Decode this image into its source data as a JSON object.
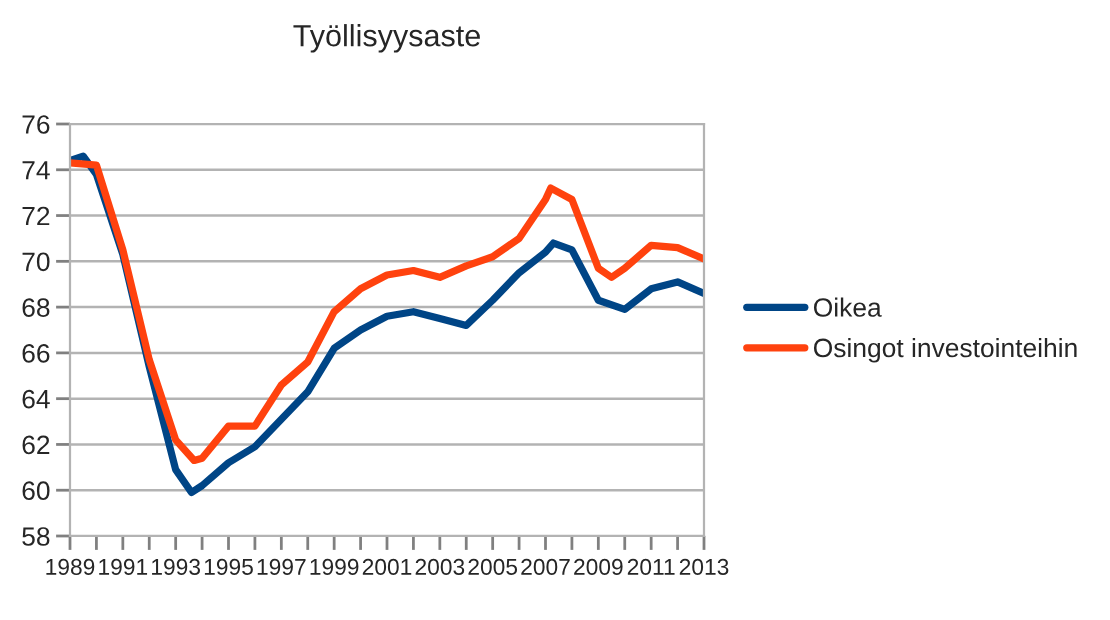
{
  "chart_data": {
    "type": "line",
    "title": "Työllisyysaste",
    "series": [
      {
        "name": "Oikea",
        "color": "#004586",
        "x": [
          1989,
          1989.5,
          1990,
          1991,
          1992,
          1993,
          1993.6,
          1994,
          1995,
          1996,
          1997,
          1998,
          1999,
          2000,
          2001,
          2002,
          2003,
          2004,
          2005,
          2006,
          2007,
          2007.3,
          2008,
          2009,
          2010,
          2011,
          2012,
          2013
        ],
        "values": [
          74.4,
          74.6,
          73.8,
          70.3,
          65.4,
          60.9,
          59.9,
          60.2,
          61.2,
          61.9,
          63.1,
          64.3,
          66.2,
          67.0,
          67.6,
          67.8,
          67.5,
          67.2,
          68.3,
          69.5,
          70.4,
          70.8,
          70.5,
          68.3,
          67.9,
          68.8,
          69.1,
          68.6
        ]
      },
      {
        "name": "Osingot investointeihin",
        "color": "#ff420e",
        "x": [
          1989,
          1990,
          1991,
          1992,
          1993,
          1993.7,
          1994,
          1995,
          1996,
          1997,
          1998,
          1999,
          2000,
          2001,
          2002,
          2003,
          2004,
          2005,
          2006,
          2007,
          2007.2,
          2008,
          2009,
          2009.5,
          2010,
          2011,
          2012,
          2013
        ],
        "values": [
          74.3,
          74.2,
          70.5,
          65.7,
          62.2,
          61.3,
          61.4,
          62.8,
          62.8,
          64.6,
          65.6,
          67.8,
          68.8,
          69.4,
          69.6,
          69.3,
          69.8,
          70.2,
          71.0,
          72.7,
          73.2,
          72.7,
          69.7,
          69.3,
          69.7,
          70.7,
          70.6,
          70.1
        ]
      }
    ],
    "xlim": [
      1989,
      2013
    ],
    "xticks": [
      1989,
      {
        "value": 1990,
        "label": null
      },
      1991,
      {
        "value": 1992,
        "label": null
      },
      1993,
      {
        "value": 1994,
        "label": null
      },
      1995,
      {
        "value": 1996,
        "label": null
      },
      1997,
      {
        "value": 1998,
        "label": null
      },
      1999,
      {
        "value": 2000,
        "label": null
      },
      2001,
      {
        "value": 2002,
        "label": null
      },
      2003,
      {
        "value": 2004,
        "label": null
      },
      2005,
      {
        "value": 2006,
        "label": null
      },
      2007,
      {
        "value": 2008,
        "label": null
      },
      2009,
      {
        "value": 2010,
        "label": null
      },
      2011,
      {
        "value": 2012,
        "label": null
      },
      2013
    ],
    "ylim": [
      58,
      76
    ],
    "yticks": [
      58,
      60,
      62,
      64,
      66,
      68,
      70,
      72,
      74,
      76
    ],
    "grid": "y",
    "legend": "right",
    "marker": "none",
    "line_style": "solid"
  }
}
